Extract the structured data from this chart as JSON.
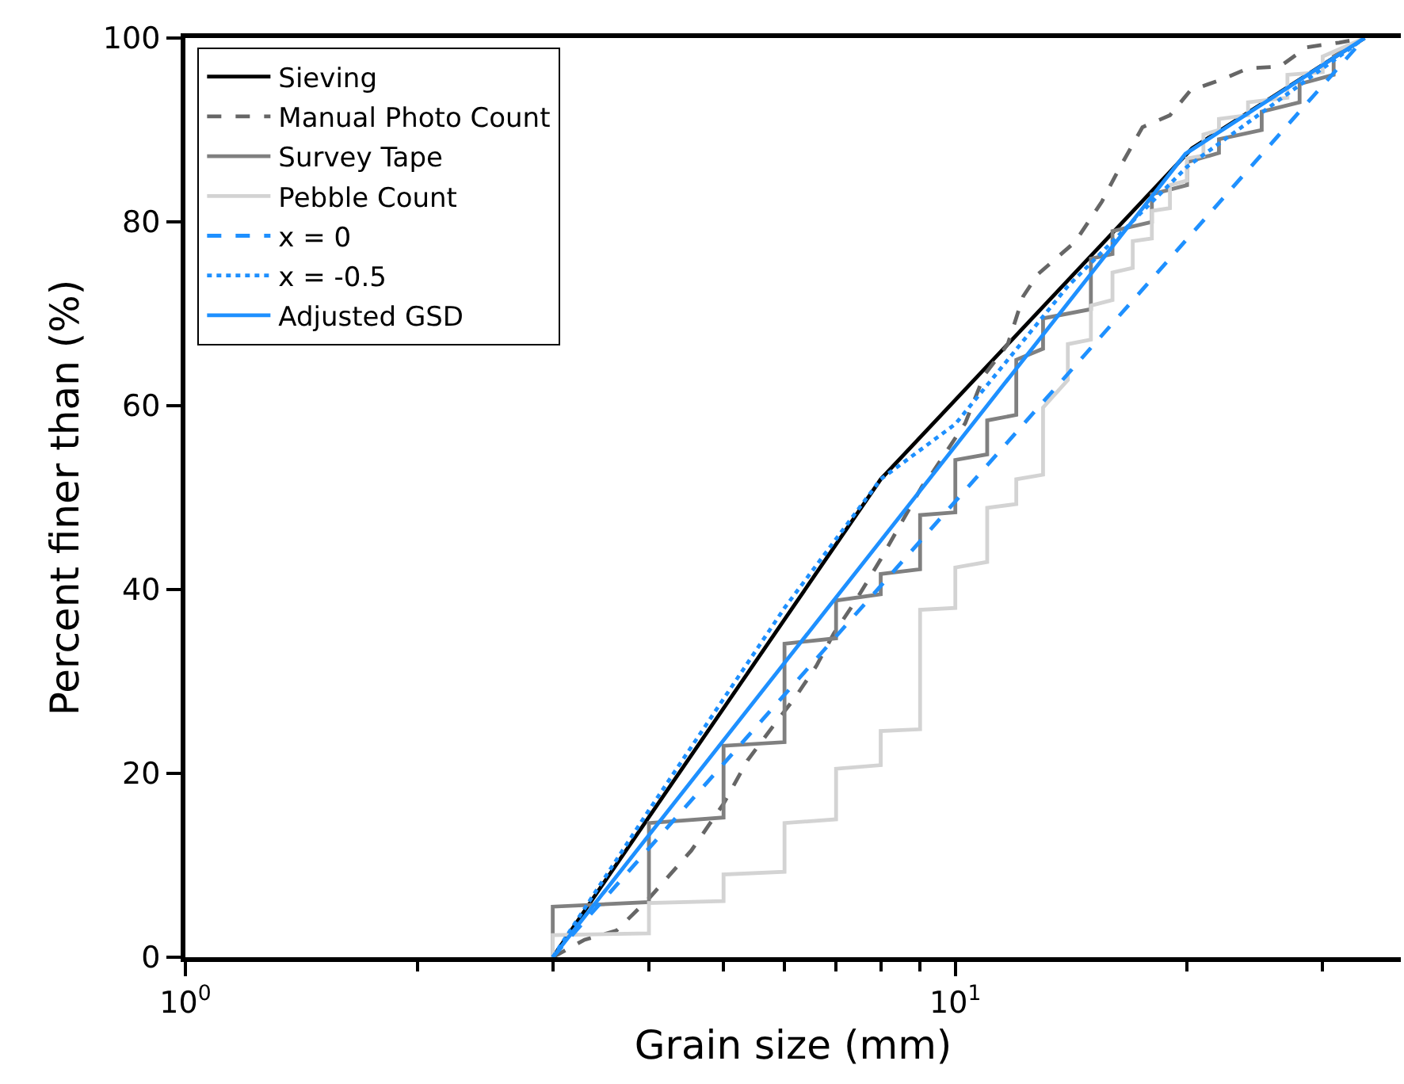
{
  "chart_data": {
    "type": "line",
    "xlabel": "Grain size (mm)",
    "ylabel": "Percent finer than (%)",
    "log": "x",
    "grid": false,
    "legend": "top left",
    "marker": "none",
    "xlim": [
      1,
      37.9
    ],
    "ylim": [
      0,
      100
    ],
    "xticks": [
      {
        "value": 1,
        "label": "10$^{0}$"
      },
      {
        "value": 2,
        "label": null
      },
      {
        "value": 3,
        "label": null
      },
      {
        "value": 4,
        "label": null
      },
      {
        "value": 5,
        "label": null
      },
      {
        "value": 6,
        "label": null
      },
      {
        "value": 7,
        "label": null
      },
      {
        "value": 8,
        "label": null
      },
      {
        "value": 9,
        "label": null
      },
      {
        "value": 10,
        "label": "10$^{1}$"
      },
      {
        "value": 20,
        "label": null
      },
      {
        "value": 30,
        "label": null
      }
    ],
    "yticks": [
      0,
      20,
      40,
      60,
      80,
      100
    ],
    "series": [
      {
        "name": "Sieving",
        "color": "#000000",
        "line_style": "solid",
        "x": [
          3,
          8,
          20.3,
          34
        ],
        "values": [
          0,
          52,
          88,
          100
        ]
      },
      {
        "name": "Manual Photo Count",
        "color": "#666666",
        "line_style": "dashed",
        "x": [
          3,
          3.3,
          3.63,
          4,
          4.54,
          5,
          5.37,
          5.83,
          6.2,
          6.6,
          6.95,
          7.4,
          8,
          8.5,
          9.05,
          9.37,
          10.3,
          10.9,
          11.7,
          12.25,
          12.8,
          14.3,
          15.5,
          16.3,
          17.5,
          19,
          20.2,
          22.2,
          24,
          26.4,
          28.6,
          31.5,
          34
        ],
        "values": [
          0,
          1.9,
          2.9,
          6.4,
          11.6,
          16.7,
          21.4,
          25.4,
          28.3,
          31.7,
          35.2,
          38.6,
          43.3,
          47.2,
          51.2,
          52.9,
          58.1,
          63.3,
          66.7,
          71.9,
          74.3,
          77.8,
          82.2,
          85.7,
          90.3,
          91.6,
          94.3,
          95.5,
          96.7,
          96.9,
          99,
          99.5,
          100
        ]
      },
      {
        "name": "Survey Tape",
        "color": "#808080",
        "line_style": "solid",
        "x": [
          3,
          3,
          4,
          4,
          5,
          5,
          6,
          6,
          7,
          7,
          8,
          8,
          9,
          9,
          10,
          10,
          11,
          11,
          12,
          12,
          13,
          13,
          15,
          15,
          16,
          16,
          18,
          18,
          20,
          20,
          22,
          22,
          25,
          25,
          28,
          28,
          31,
          31,
          34
        ],
        "values": [
          0,
          5.5,
          6,
          14.6,
          15.2,
          23,
          23.4,
          34.1,
          34.7,
          38.8,
          39.5,
          41.7,
          42.2,
          48.1,
          48.4,
          54.1,
          54.7,
          58.4,
          59,
          65,
          66.2,
          69.5,
          70.5,
          76,
          76.5,
          79,
          80,
          83,
          84,
          86.5,
          87.5,
          89,
          90,
          92,
          93,
          95,
          96,
          98,
          100
        ]
      },
      {
        "name": "Pebble Count",
        "color": "#d3d3d3",
        "line_style": "solid",
        "x": [
          3,
          3,
          4,
          4,
          5,
          5,
          6,
          6,
          7,
          7,
          8,
          8,
          9,
          9,
          10,
          10,
          11,
          11,
          12,
          12,
          13,
          13,
          14,
          14,
          15,
          15,
          16,
          16,
          17,
          17,
          18,
          18,
          19,
          19,
          20,
          20,
          21,
          21,
          22,
          22,
          24,
          24,
          27,
          27,
          30,
          30,
          34
        ],
        "values": [
          0,
          2.4,
          2.6,
          5.9,
          6.1,
          9,
          9.3,
          14.6,
          15,
          20.5,
          20.9,
          24.6,
          24.8,
          37.8,
          38,
          42.4,
          43,
          48.9,
          49.3,
          52,
          52.5,
          59.8,
          62.8,
          66.7,
          67.2,
          70.9,
          71.5,
          74.5,
          75,
          77.9,
          78.2,
          81.2,
          81.5,
          84,
          84.5,
          86.9,
          87.2,
          89.5,
          90,
          91.2,
          91.6,
          93,
          93.5,
          96,
          96.3,
          98,
          100
        ]
      },
      {
        "name": "x = 0",
        "color": "#1e90ff",
        "line_style": "dashed",
        "x": [
          3,
          34
        ],
        "values": [
          0,
          100
        ]
      },
      {
        "name": "x = -0.5",
        "color": "#1e90ff",
        "line_style": "dotted",
        "x": [
          3,
          4,
          6,
          8,
          10,
          14,
          20,
          34
        ],
        "values": [
          0,
          16,
          38,
          52,
          58,
          73,
          86,
          100
        ]
      },
      {
        "name": "Adjusted GSD",
        "color": "#1e90ff",
        "line_style": "solid",
        "x": [
          3,
          19.9,
          34
        ],
        "values": [
          0,
          87.4,
          100
        ]
      }
    ]
  }
}
